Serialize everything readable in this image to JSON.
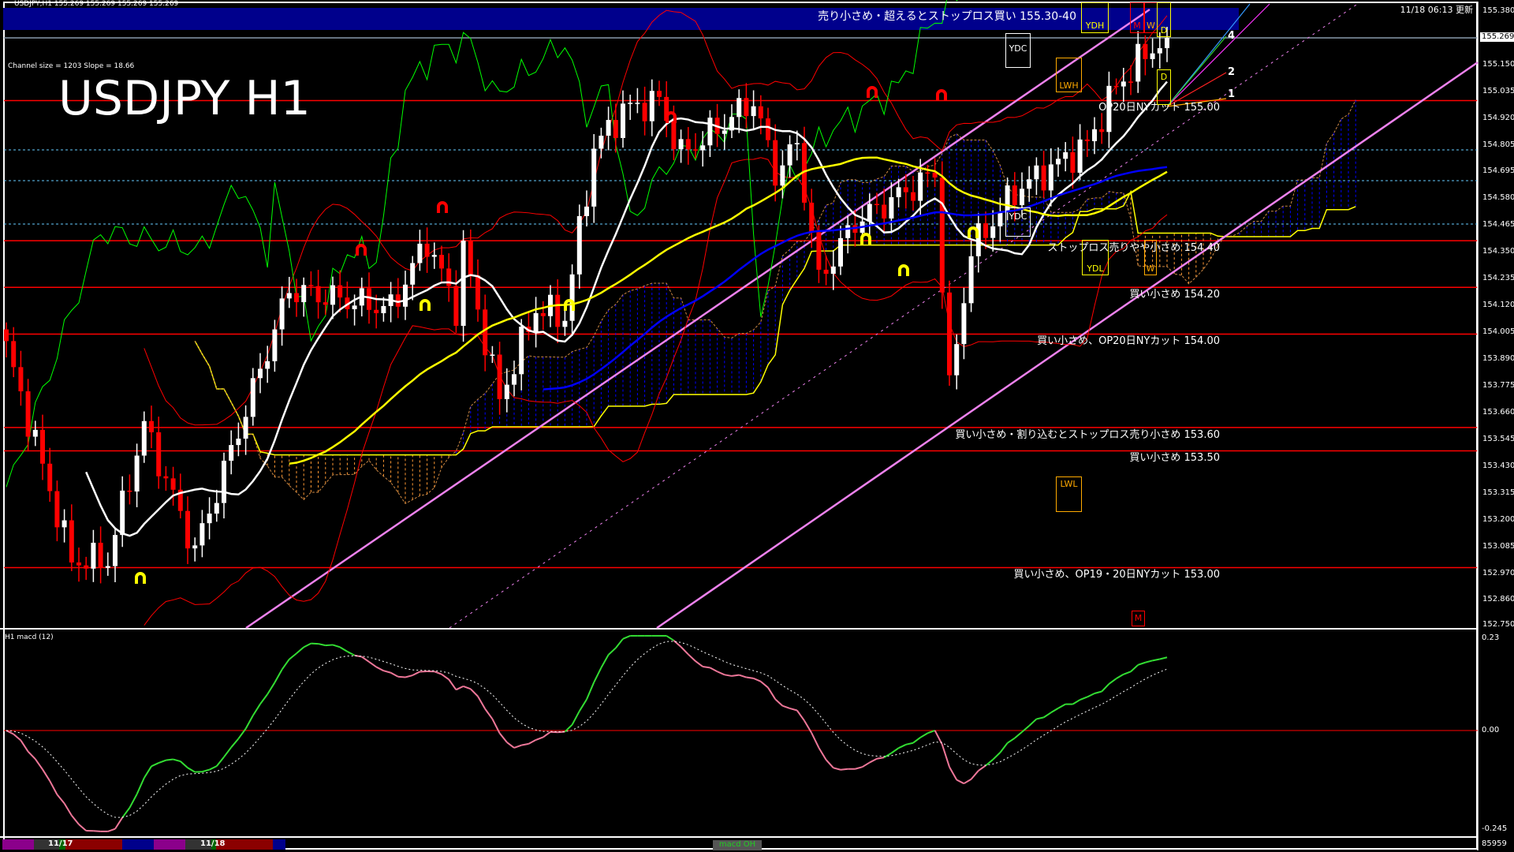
{
  "header": {
    "symbol_line": "USDJPY,H1  155.269 155.269 155.269 155.269",
    "updated": "11/18 06:13 更新",
    "channel_info": "Channel size = 1203 Slope = 18.66",
    "big_title": "USDJPY H1",
    "banner": "売り小さめ・超えるとストップロス買い 155.30-40"
  },
  "price_axis": {
    "ticks": [
      "155.380",
      "155.150",
      "155.035",
      "154.920",
      "154.805",
      "154.695",
      "154.580",
      "154.465",
      "154.350",
      "154.235",
      "154.120",
      "154.005",
      "153.890",
      "153.775",
      "153.660",
      "153.545",
      "153.430",
      "153.315",
      "153.200",
      "153.085",
      "152.970",
      "152.860",
      "152.750"
    ],
    "current_price": "155.269"
  },
  "levels": [
    {
      "price": 155.0,
      "label": "OP20日NYカット 155.00"
    },
    {
      "price": 154.4,
      "label": "ストップロス売りやや小さめ 154.40"
    },
    {
      "price": 154.2,
      "label": "買い小さめ 154.20"
    },
    {
      "price": 154.0,
      "label": "買い小さめ、OP20日NYカット 154.00"
    },
    {
      "price": 153.6,
      "label": "買い小さめ・割り込むとストップロス売り小さめ 153.60"
    },
    {
      "price": 153.5,
      "label": "買い小さめ 153.50"
    },
    {
      "price": 153.0,
      "label": "買い小さめ、OP19・20日NYカット 153.00"
    }
  ],
  "annotations": {
    "ydc": "YDC",
    "ydh": "YDH",
    "m": "M",
    "w": "W",
    "d": "D",
    "lwh": "LWH",
    "ydl": "YDL",
    "lwl": "LWL",
    "fan": [
      "4",
      "2",
      "1"
    ]
  },
  "macd": {
    "label": "H1  macd (12)",
    "ticks": [
      "0.23",
      "0.00",
      "-0.245"
    ],
    "volume": "85959"
  },
  "bottom_bar": {
    "dates": [
      "11/17",
      "11/18"
    ],
    "indicator_button": "macd OH"
  },
  "colors": {
    "bull": "#ffffff",
    "bear": "#ff0000",
    "level": "#ff0000",
    "banner": "#00008c",
    "cloud_bull": "#0000ff",
    "cloud_bear": "#ff9933",
    "ma_fast": "#ffffff",
    "ma_mid": "#ffff00",
    "ma_slow": "#0000ff",
    "channel": "#ee82ee",
    "chikou": "#00ff00"
  },
  "chart_data": {
    "type": "candlestick",
    "symbol": "USDJPY",
    "timeframe": "H1",
    "ylim": [
      152.75,
      155.38
    ],
    "price_waypoints": [
      [
        0,
        153.94
      ],
      [
        9,
        153.03
      ],
      [
        14,
        153.03
      ],
      [
        19,
        153.61
      ],
      [
        26,
        153.07
      ],
      [
        39,
        154.19
      ],
      [
        53,
        154.11
      ],
      [
        58,
        154.4
      ],
      [
        62,
        154.11
      ],
      [
        63,
        154.36
      ],
      [
        68,
        153.72
      ],
      [
        73,
        154.11
      ],
      [
        77,
        154.07
      ],
      [
        79,
        154.44
      ],
      [
        81,
        154.79
      ],
      [
        85,
        154.96
      ],
      [
        90,
        155.0
      ],
      [
        93,
        154.77
      ],
      [
        98,
        154.88
      ],
      [
        103,
        155.0
      ],
      [
        106,
        154.69
      ],
      [
        109,
        154.81
      ],
      [
        112,
        154.23
      ],
      [
        117,
        154.48
      ],
      [
        124,
        154.61
      ],
      [
        128,
        154.69
      ],
      [
        130,
        153.76
      ],
      [
        133,
        154.36
      ],
      [
        139,
        154.61
      ],
      [
        149,
        154.81
      ],
      [
        153,
        155.06
      ],
      [
        157,
        155.2
      ],
      [
        160,
        155.27
      ]
    ],
    "macd_range": [
      -0.245,
      0.23
    ]
  }
}
